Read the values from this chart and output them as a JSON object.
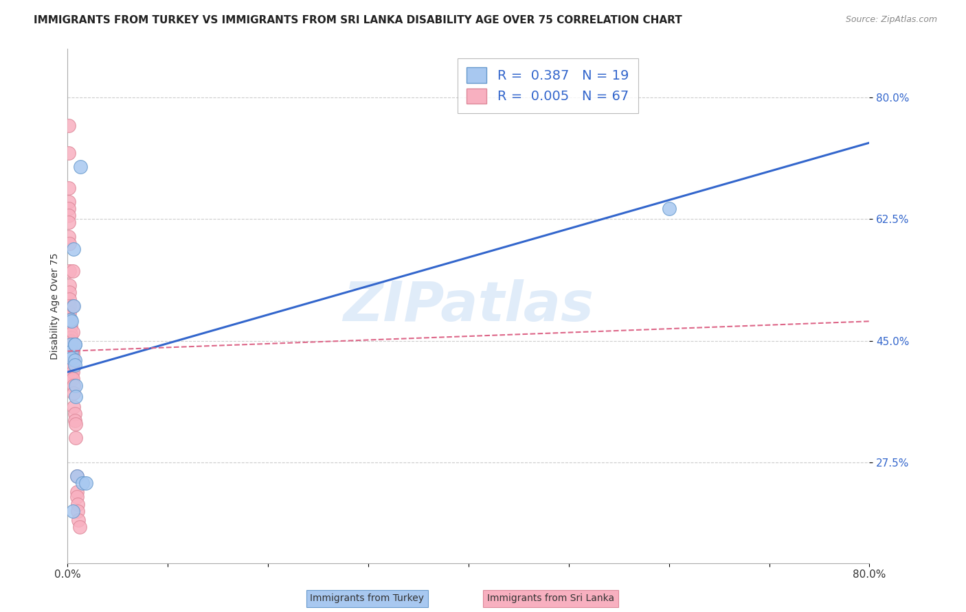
{
  "title": "IMMIGRANTS FROM TURKEY VS IMMIGRANTS FROM SRI LANKA DISABILITY AGE OVER 75 CORRELATION CHART",
  "source": "Source: ZipAtlas.com",
  "ylabel": "Disability Age Over 75",
  "watermark": "ZIPatlas",
  "turkey_color": "#a8c8f0",
  "turkey_edge_color": "#6699cc",
  "srilanka_color": "#f8b0c0",
  "srilanka_edge_color": "#dd8899",
  "turkey_R": 0.387,
  "turkey_N": 19,
  "srilanka_R": 0.005,
  "srilanka_N": 67,
  "turkey_line_color": "#3366cc",
  "srilanka_line_color": "#dd6688",
  "turkey_scatter_x": [
    0.003,
    0.003,
    0.004,
    0.004,
    0.004,
    0.006,
    0.006,
    0.007,
    0.007,
    0.007,
    0.007,
    0.008,
    0.008,
    0.009,
    0.013,
    0.015,
    0.018,
    0.6,
    0.005
  ],
  "turkey_scatter_y": [
    0.445,
    0.48,
    0.478,
    0.435,
    0.425,
    0.582,
    0.5,
    0.445,
    0.445,
    0.422,
    0.415,
    0.385,
    0.37,
    0.255,
    0.7,
    0.245,
    0.245,
    0.64,
    0.205
  ],
  "srilanka_scatter_x": [
    0.001,
    0.001,
    0.001,
    0.001,
    0.001,
    0.001,
    0.001,
    0.001,
    0.002,
    0.002,
    0.002,
    0.002,
    0.002,
    0.002,
    0.002,
    0.002,
    0.003,
    0.003,
    0.003,
    0.003,
    0.003,
    0.003,
    0.003,
    0.003,
    0.003,
    0.004,
    0.004,
    0.004,
    0.004,
    0.004,
    0.004,
    0.004,
    0.004,
    0.004,
    0.004,
    0.004,
    0.004,
    0.004,
    0.004,
    0.005,
    0.005,
    0.005,
    0.005,
    0.005,
    0.005,
    0.005,
    0.005,
    0.005,
    0.005,
    0.005,
    0.005,
    0.005,
    0.005,
    0.006,
    0.006,
    0.006,
    0.007,
    0.007,
    0.008,
    0.008,
    0.009,
    0.009,
    0.009,
    0.01,
    0.01,
    0.011,
    0.012
  ],
  "srilanka_scatter_y": [
    0.76,
    0.72,
    0.67,
    0.65,
    0.64,
    0.63,
    0.62,
    0.6,
    0.59,
    0.55,
    0.53,
    0.52,
    0.51,
    0.5,
    0.49,
    0.48,
    0.47,
    0.46,
    0.455,
    0.45,
    0.448,
    0.445,
    0.443,
    0.44,
    0.437,
    0.435,
    0.432,
    0.43,
    0.428,
    0.425,
    0.422,
    0.42,
    0.418,
    0.415,
    0.412,
    0.409,
    0.406,
    0.402,
    0.398,
    0.55,
    0.5,
    0.462,
    0.445,
    0.444,
    0.432,
    0.432,
    0.432,
    0.425,
    0.422,
    0.415,
    0.412,
    0.405,
    0.395,
    0.385,
    0.375,
    0.355,
    0.345,
    0.335,
    0.33,
    0.31,
    0.255,
    0.232,
    0.225,
    0.215,
    0.205,
    0.192,
    0.182
  ],
  "xlim": [
    0.0,
    0.8
  ],
  "ylim": [
    0.13,
    0.87
  ],
  "ytick_values": [
    0.8,
    0.625,
    0.45,
    0.275
  ],
  "ytick_labels": [
    "80.0%",
    "62.5%",
    "45.0%",
    "27.5%"
  ],
  "xtick_values": [
    0.0,
    0.1,
    0.2,
    0.3,
    0.4,
    0.5,
    0.6,
    0.7,
    0.8
  ],
  "xtick_labels": [
    "0.0%",
    "",
    "",
    "",
    "",
    "",
    "",
    "",
    "80.0%"
  ],
  "turkey_line_x": [
    0.0,
    0.8
  ],
  "turkey_line_y": [
    0.405,
    0.735
  ],
  "srilanka_line_x": [
    0.0,
    0.8
  ],
  "srilanka_line_y": [
    0.435,
    0.478
  ],
  "background_color": "#ffffff",
  "grid_color": "#cccccc",
  "title_fontsize": 11,
  "axis_label_fontsize": 10,
  "tick_fontsize": 11,
  "legend_fontsize": 14,
  "source_fontsize": 9
}
